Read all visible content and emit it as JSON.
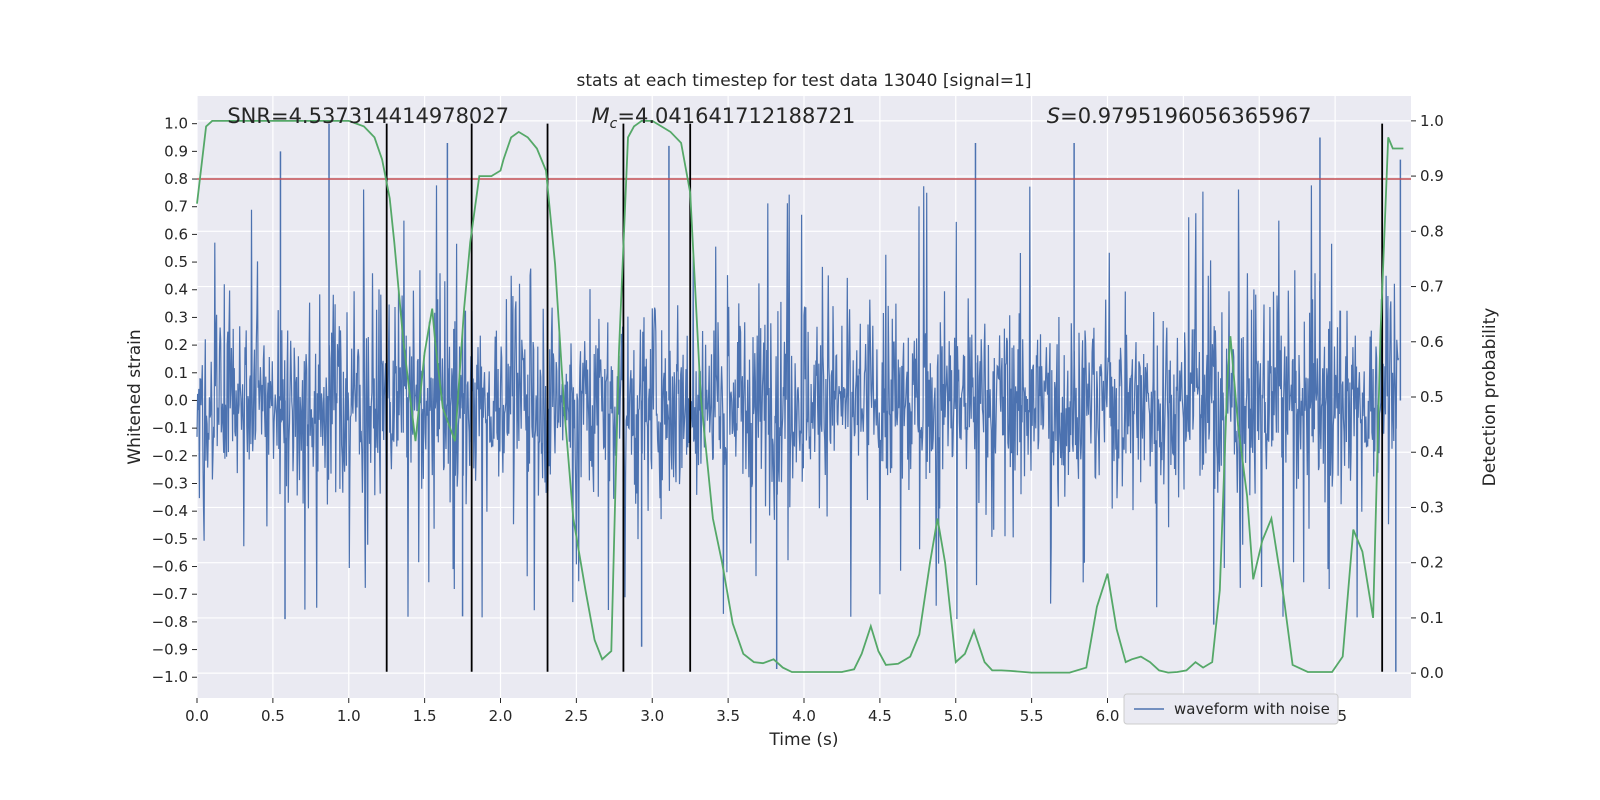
{
  "chart_data": {
    "type": "line",
    "title": "stats at each timestep for test data 13040 [signal=1]",
    "xlabel": "Time (s)",
    "ylabel": "Whitened strain",
    "y2label": "Detection probability",
    "xlim": [
      0.0,
      8.0
    ],
    "ylim": [
      -1.075,
      1.1
    ],
    "y2lim": [
      -0.045,
      1.045
    ],
    "x_ticks": [
      0.0,
      0.5,
      1.0,
      1.5,
      2.0,
      2.5,
      3.0,
      3.5,
      4.0,
      4.5,
      5.0,
      5.5,
      6.0,
      6.5,
      7.0,
      7.5
    ],
    "x_tick_labels": [
      "0.0",
      "0.5",
      "1.0",
      "1.5",
      "2.0",
      "2.5",
      "3.0",
      "3.5",
      "4.0",
      "4.5",
      "5.0",
      "5.5",
      "6.0",
      "6.5",
      "7.0",
      "7.5"
    ],
    "y_ticks": [
      -1.0,
      -0.9,
      -0.8,
      -0.7,
      -0.6,
      -0.5,
      -0.4,
      -0.3,
      -0.2,
      -0.1,
      0.0,
      0.1,
      0.2,
      0.3,
      0.4,
      0.5,
      0.6,
      0.7,
      0.8,
      0.9,
      1.0
    ],
    "y_tick_labels": [
      "−1.0",
      "−0.9",
      "−0.8",
      "−0.7",
      "−0.6",
      "−0.5",
      "−0.4",
      "−0.3",
      "−0.2",
      "−0.1",
      "0.0",
      "0.1",
      "0.2",
      "0.3",
      "0.4",
      "0.5",
      "0.6",
      "0.7",
      "0.8",
      "0.9",
      "1.0"
    ],
    "y2_ticks": [
      0.0,
      0.1,
      0.2,
      0.3,
      0.4,
      0.5,
      0.6,
      0.7,
      0.8,
      0.9,
      1.0
    ],
    "y2_tick_labels": [
      "0.0",
      "0.1",
      "0.2",
      "0.3",
      "0.4",
      "0.5",
      "0.6",
      "0.7",
      "0.8",
      "0.9",
      "1.0"
    ],
    "grid": true,
    "legend_position": "bottom-right",
    "series": [
      {
        "name": "waveform with noise",
        "axis": "left",
        "color": "#4c72b0",
        "kind": "noise",
        "sample_rate_hz": 256,
        "typical_envelope": 0.45,
        "peak_spikes": [
          {
            "x": 0.55,
            "y": 0.9
          },
          {
            "x": 0.87,
            "y": 1.0
          },
          {
            "x": 1.65,
            "y": 0.93
          },
          {
            "x": 3.11,
            "y": 0.92
          },
          {
            "x": 5.13,
            "y": 0.93
          },
          {
            "x": 5.78,
            "y": 0.93
          },
          {
            "x": 7.4,
            "y": 0.95
          },
          {
            "x": 7.93,
            "y": 0.87
          },
          {
            "x": 0.58,
            "y": -0.79
          },
          {
            "x": 1.75,
            "y": -0.78
          },
          {
            "x": 3.82,
            "y": -0.97
          },
          {
            "x": 6.7,
            "y": -0.81
          },
          {
            "x": 7.9,
            "y": -0.98
          },
          {
            "x": 2.93,
            "y": -0.89
          }
        ]
      },
      {
        "name": "",
        "axis": "right",
        "color": "#55a868",
        "x": [
          0.0,
          0.06,
          0.1,
          0.2,
          0.3,
          0.5,
          0.7,
          0.9,
          1.0,
          1.1,
          1.17,
          1.22,
          1.27,
          1.3,
          1.36,
          1.44,
          1.5,
          1.55,
          1.57,
          1.62,
          1.7,
          1.76,
          1.8,
          1.86,
          1.94,
          2.0,
          2.02,
          2.07,
          2.12,
          2.18,
          2.24,
          2.3,
          2.36,
          2.42,
          2.48,
          2.56,
          2.62,
          2.67,
          2.73,
          2.78,
          2.84,
          2.88,
          2.93,
          3.0,
          3.06,
          3.12,
          3.19,
          3.25,
          3.32,
          3.4,
          3.46,
          3.53,
          3.6,
          3.67,
          3.73,
          3.8,
          3.86,
          3.92,
          4.0,
          4.12,
          4.25,
          4.33,
          4.38,
          4.44,
          4.49,
          4.54,
          4.62,
          4.7,
          4.76,
          4.83,
          4.88,
          4.93,
          5.0,
          5.06,
          5.12,
          5.19,
          5.24,
          5.3,
          5.36,
          5.5,
          5.6,
          5.75,
          5.86,
          5.93,
          6.0,
          6.06,
          6.12,
          6.16,
          6.22,
          6.28,
          6.34,
          6.4,
          6.46,
          6.52,
          6.58,
          6.63,
          6.69,
          6.74,
          6.79,
          6.81,
          6.86,
          6.92,
          6.96,
          7.02,
          7.08,
          7.16,
          7.22,
          7.32,
          7.48,
          7.55,
          7.62,
          7.68,
          7.75,
          7.8,
          7.85,
          7.88,
          7.95
        ],
        "y": [
          0.85,
          0.99,
          1.0,
          1.0,
          1.0,
          1.0,
          1.0,
          1.0,
          1.0,
          0.99,
          0.97,
          0.93,
          0.86,
          0.78,
          0.6,
          0.42,
          0.58,
          0.66,
          0.6,
          0.48,
          0.42,
          0.66,
          0.78,
          0.9,
          0.9,
          0.91,
          0.93,
          0.97,
          0.98,
          0.97,
          0.95,
          0.91,
          0.74,
          0.48,
          0.28,
          0.15,
          0.06,
          0.025,
          0.04,
          0.58,
          0.97,
          0.99,
          1.0,
          1.0,
          0.99,
          0.98,
          0.96,
          0.87,
          0.5,
          0.28,
          0.2,
          0.09,
          0.035,
          0.02,
          0.018,
          0.025,
          0.01,
          0.002,
          0.002,
          0.002,
          0.002,
          0.007,
          0.035,
          0.085,
          0.04,
          0.015,
          0.017,
          0.03,
          0.07,
          0.2,
          0.28,
          0.2,
          0.02,
          0.035,
          0.077,
          0.02,
          0.005,
          0.005,
          0.004,
          0.001,
          0.001,
          0.001,
          0.01,
          0.12,
          0.18,
          0.08,
          0.02,
          0.025,
          0.03,
          0.02,
          0.005,
          0.001,
          0.002,
          0.005,
          0.02,
          0.01,
          0.02,
          0.15,
          0.53,
          0.61,
          0.45,
          0.32,
          0.17,
          0.24,
          0.28,
          0.14,
          0.015,
          0.002,
          0.002,
          0.03,
          0.26,
          0.22,
          0.1,
          0.62,
          0.97,
          0.95,
          0.95
        ]
      },
      {
        "name": "",
        "axis": "left",
        "color": "#c44e52",
        "kind": "hline",
        "y": 0.8
      },
      {
        "name": "",
        "axis": "left",
        "color": "#000000",
        "kind": "vlines",
        "x": [
          1.25,
          1.81,
          2.31,
          2.81,
          3.25,
          7.81
        ],
        "ymin": -0.98,
        "ymax": 1.0
      }
    ],
    "annotations": [
      {
        "text": "SNR=4.537314414978027",
        "x": 0.2
      },
      {
        "text": "=4.041641712188721",
        "x": 2.6,
        "math_symbol": "M",
        "math_subscript": "c"
      },
      {
        "text": "=0.9795196056365967",
        "x": 5.6,
        "math_symbol": "S"
      }
    ]
  }
}
